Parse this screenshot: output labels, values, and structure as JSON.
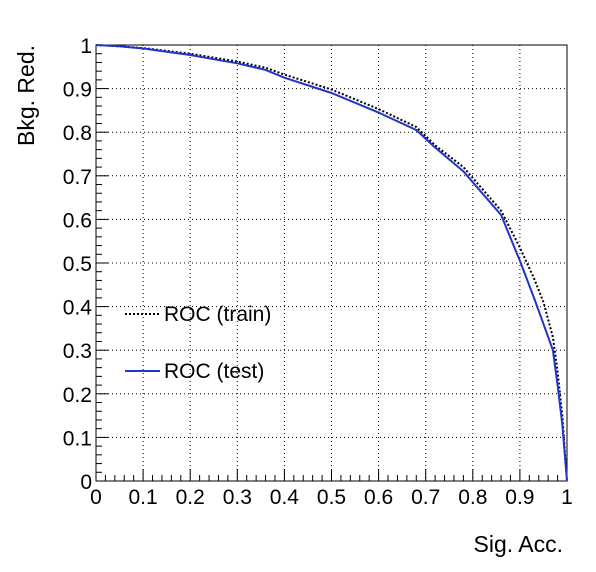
{
  "chart_data": {
    "type": "line",
    "xlabel": "Sig. Acc.",
    "ylabel": "Bkg. Red.",
    "xlim": [
      0,
      1
    ],
    "ylim": [
      0,
      1
    ],
    "x_ticks": [
      "0",
      "0.1",
      "0.2",
      "0.3",
      "0.4",
      "0.5",
      "0.6",
      "0.7",
      "0.8",
      "0.9",
      "1"
    ],
    "y_ticks": [
      "0",
      "0.1",
      "0.2",
      "0.3",
      "0.4",
      "0.5",
      "0.6",
      "0.7",
      "0.8",
      "0.9",
      "1"
    ],
    "grid": true,
    "legend_position": "left",
    "series": [
      {
        "name": "ROC (train)",
        "style": "dotted",
        "color": "#000000",
        "x": [
          0.0,
          0.05,
          0.1,
          0.2,
          0.3,
          0.36,
          0.4,
          0.5,
          0.6,
          0.68,
          0.72,
          0.78,
          0.82,
          0.86,
          0.9,
          0.93,
          0.95,
          0.97,
          0.98,
          0.99,
          1.0
        ],
        "y": [
          1.0,
          0.997,
          0.993,
          0.98,
          0.962,
          0.948,
          0.932,
          0.898,
          0.853,
          0.812,
          0.77,
          0.72,
          0.67,
          0.62,
          0.535,
          0.465,
          0.41,
          0.33,
          0.25,
          0.15,
          0.0
        ]
      },
      {
        "name": "ROC (test)",
        "style": "solid",
        "color": "#1f36c9",
        "x": [
          0.0,
          0.05,
          0.1,
          0.2,
          0.3,
          0.36,
          0.4,
          0.5,
          0.6,
          0.68,
          0.72,
          0.78,
          0.82,
          0.86,
          0.9,
          0.93,
          0.95,
          0.97,
          0.98,
          0.99,
          1.0
        ],
        "y": [
          1.0,
          0.997,
          0.992,
          0.977,
          0.958,
          0.943,
          0.925,
          0.89,
          0.845,
          0.805,
          0.765,
          0.71,
          0.66,
          0.61,
          0.505,
          0.42,
          0.36,
          0.3,
          0.22,
          0.13,
          0.0
        ]
      }
    ]
  }
}
